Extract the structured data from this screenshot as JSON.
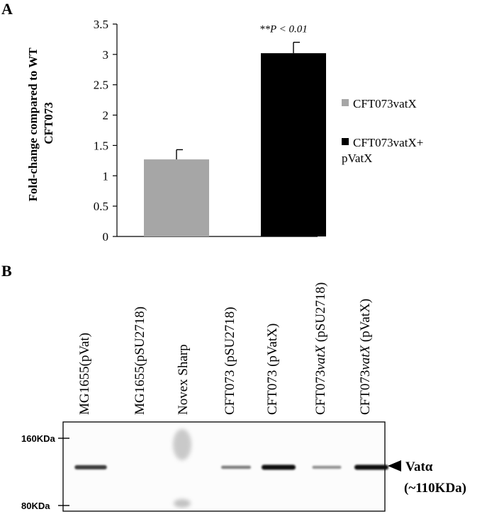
{
  "panel_a": {
    "letter": "A"
  },
  "panel_b": {
    "letter": "B",
    "lanes": [
      {
        "pre": "MG1655(pVat)",
        "italic": "",
        "post": "",
        "band": 0.75
      },
      {
        "pre": "MG1655(pSU2718)",
        "italic": "",
        "post": "",
        "band": 0
      },
      {
        "pre": "Novex Sharp",
        "italic": "",
        "post": "",
        "band": 0
      },
      {
        "pre": "CFT073 (pSU2718)",
        "italic": "",
        "post": "",
        "band": 0.4
      },
      {
        "pre": "CFT073 (pVatX)",
        "italic": "",
        "post": "",
        "band": 1.0
      },
      {
        "pre": "CFT073",
        "italic": "vatX",
        "post": " (pSU2718)",
        "band": 0.3
      },
      {
        "pre": "CFT073",
        "italic": "vatX",
        "post": " (pVatX)",
        "band": 1.0
      }
    ],
    "markers": [
      {
        "label": "160KDa"
      },
      {
        "label": "80KDa"
      }
    ],
    "band_label": "Vatα",
    "band_size": "(~110KDa)"
  },
  "colors": {
    "bar1": "#a6a6a6",
    "bar2": "#000000",
    "axis": "#000000"
  },
  "chart_data": {
    "type": "bar",
    "title": "",
    "xlabel": "",
    "ylabel": "Fold-change compared to WT CFT073",
    "ylabel_lines": [
      "Fold-change compared to WT",
      "CFT073"
    ],
    "ylim": [
      0,
      3.5
    ],
    "yticks": [
      0,
      0.5,
      1,
      1.5,
      2,
      2.5,
      3,
      3.5
    ],
    "ytick_labels": [
      "0",
      "0.5",
      "1",
      "1.5",
      "2",
      "2.5",
      "3",
      "3.5"
    ],
    "grid": false,
    "legend_position": "right",
    "series": [
      {
        "name": "CFT073vatX",
        "value": 1.27,
        "error": 0.16,
        "legend_lines": [
          "CFT073vatX"
        ]
      },
      {
        "name": "CFT073vatX+ pVatX",
        "value": 3.02,
        "error": 0.18,
        "legend_lines": [
          "CFT073vatX+",
          "pVatX"
        ]
      }
    ],
    "annotations": [
      {
        "text_pre": "**",
        "text_italic": "P < 0.01",
        "series": 1
      }
    ]
  }
}
